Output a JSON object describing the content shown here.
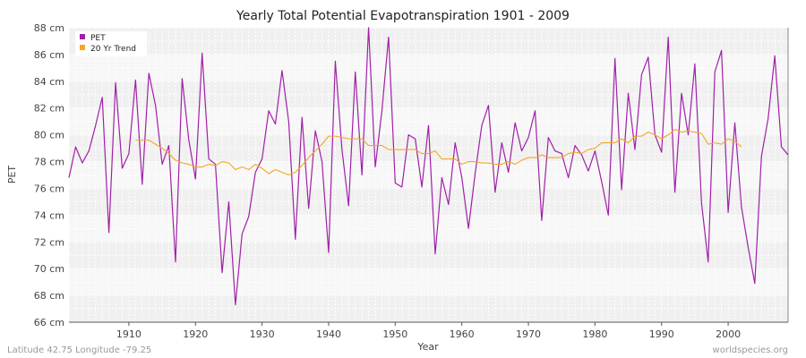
{
  "chart_data": {
    "type": "line",
    "title": "Yearly Total Potential Evapotranspiration 1901 - 2009",
    "xlabel": "Year",
    "ylabel": "PET",
    "xlim": [
      1901,
      2009
    ],
    "ylim": [
      66,
      88
    ],
    "y_unit": "cm",
    "x_ticks": [
      1910,
      1920,
      1930,
      1940,
      1950,
      1960,
      1970,
      1980,
      1990,
      2000
    ],
    "y_ticks": [
      66,
      68,
      70,
      72,
      74,
      76,
      78,
      80,
      82,
      84,
      86,
      88
    ],
    "y_tick_labels": [
      "66 cm",
      "68 cm",
      "70 cm",
      "72 cm",
      "74 cm",
      "76 cm",
      "78 cm",
      "80 cm",
      "82 cm",
      "84 cm",
      "86 cm",
      "88 cm"
    ],
    "grid": true,
    "legend_position": "top-left",
    "series": [
      {
        "name": "PET",
        "color": "#a020a8",
        "x_start": 1901,
        "values": [
          76.8,
          79.1,
          77.9,
          78.8,
          80.7,
          82.8,
          72.7,
          83.9,
          77.5,
          78.6,
          84.1,
          76.3,
          84.6,
          82.2,
          77.8,
          79.2,
          70.5,
          84.2,
          79.6,
          76.7,
          86.1,
          78.2,
          77.8,
          69.7,
          75.0,
          67.3,
          72.6,
          73.9,
          77.2,
          78.2,
          81.8,
          80.8,
          84.8,
          81.0,
          72.2,
          81.3,
          74.5,
          80.3,
          78.0,
          71.2,
          85.5,
          78.9,
          74.7,
          84.7,
          77.0,
          88.0,
          77.6,
          81.8,
          87.3,
          76.4,
          76.1,
          80.0,
          79.7,
          76.1,
          80.7,
          71.1,
          76.8,
          74.8,
          79.4,
          76.8,
          73.0,
          77.1,
          80.7,
          82.2,
          75.7,
          79.4,
          77.2,
          80.9,
          78.8,
          79.8,
          81.8,
          73.6,
          79.8,
          78.8,
          78.6,
          76.8,
          79.2,
          78.5,
          77.3,
          78.8,
          76.5,
          74.0,
          85.7,
          75.9,
          83.1,
          78.9,
          84.5,
          85.8,
          80.0,
          78.7,
          87.3,
          75.7,
          83.1,
          80.0,
          85.3,
          74.9,
          70.5,
          84.7,
          86.3,
          74.2,
          80.9,
          74.6,
          71.6,
          68.9,
          78.4,
          81.2,
          85.9,
          79.1,
          78.5
        ]
      },
      {
        "name": "20 Yr Trend",
        "color": "#f5a623",
        "x_start": 1911,
        "values": [
          79.6,
          79.6,
          79.6,
          79.3,
          79.0,
          78.6,
          78.1,
          77.9,
          77.8,
          77.6,
          77.6,
          77.8,
          77.7,
          78.0,
          77.9,
          77.4,
          77.6,
          77.4,
          77.8,
          77.5,
          77.1,
          77.4,
          77.2,
          77.0,
          77.2,
          77.7,
          78.3,
          78.8,
          79.3,
          79.9,
          79.9,
          79.8,
          79.7,
          79.7,
          79.7,
          79.2,
          79.2,
          79.2,
          78.9,
          78.9,
          78.9,
          78.9,
          78.9,
          78.6,
          78.6,
          78.8,
          78.2,
          78.2,
          78.2,
          77.8,
          78.0,
          78.0,
          77.9,
          77.9,
          77.8,
          77.8,
          78.0,
          77.8,
          78.1,
          78.3,
          78.3,
          78.5,
          78.3,
          78.3,
          78.3,
          78.6,
          78.7,
          78.6,
          78.9,
          79.0,
          79.4,
          79.4,
          79.4,
          79.7,
          79.4,
          79.9,
          79.9,
          80.2,
          80.0,
          79.7,
          80.0,
          80.4,
          80.2,
          80.3,
          80.2,
          80.1,
          79.3,
          79.4,
          79.3,
          79.7,
          79.5,
          79.1
        ]
      }
    ],
    "legend": [
      "PET",
      "20 Yr Trend"
    ],
    "footer_left": "Latitude 42.75 Longitude -79.25",
    "footer_right": "worldspecies.org"
  }
}
